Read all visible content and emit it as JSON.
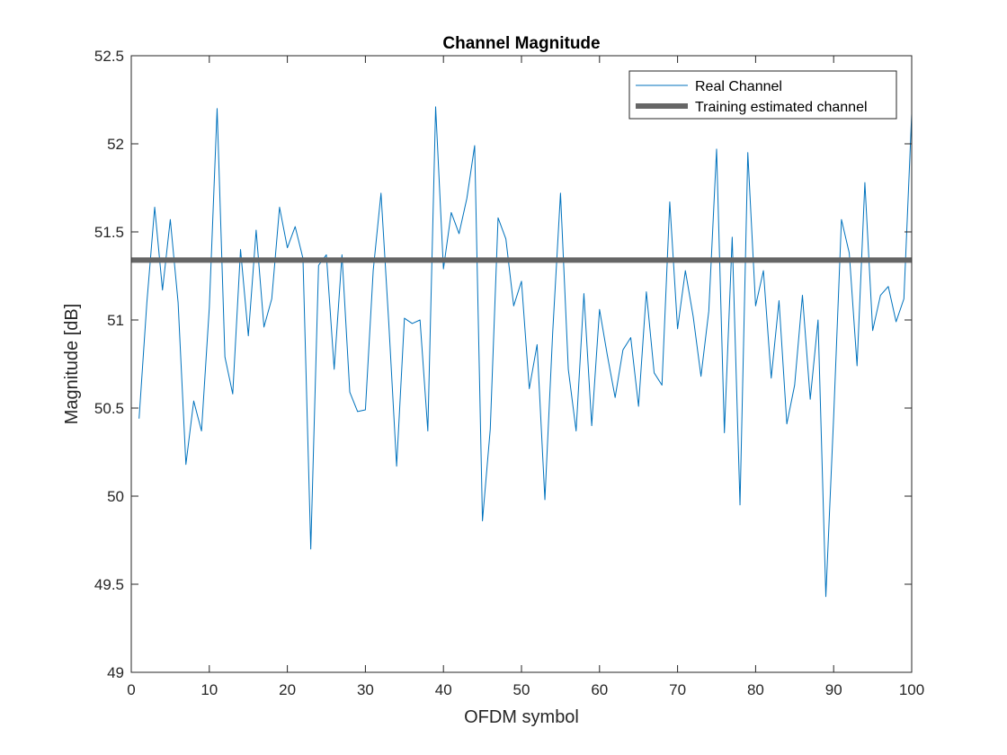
{
  "chart_data": {
    "type": "line",
    "title": "Channel Magnitude",
    "xlabel": "OFDM symbol",
    "ylabel": "Magnitude [dB]",
    "xlim": [
      0,
      100
    ],
    "ylim": [
      49,
      52.5
    ],
    "xticks": [
      0,
      10,
      20,
      30,
      40,
      50,
      60,
      70,
      80,
      90,
      100
    ],
    "yticks": [
      49,
      49.5,
      50,
      50.5,
      51,
      51.5,
      52,
      52.5
    ],
    "xtick_labels": [
      "0",
      "10",
      "20",
      "30",
      "40",
      "50",
      "60",
      "70",
      "80",
      "90",
      "100"
    ],
    "ytick_labels": [
      "49",
      "49.5",
      "50",
      "50.5",
      "51",
      "51.5",
      "52",
      "52.5"
    ],
    "grid": false,
    "legend": "top-right",
    "series": [
      {
        "name": "Real Channel",
        "color": "#0072BD",
        "x": [
          1,
          2,
          3,
          4,
          5,
          6,
          7,
          8,
          9,
          10,
          11,
          12,
          13,
          14,
          15,
          16,
          17,
          18,
          19,
          20,
          21,
          22,
          23,
          24,
          25,
          26,
          27,
          28,
          29,
          30,
          31,
          32,
          33,
          34,
          35,
          36,
          37,
          38,
          39,
          40,
          41,
          42,
          43,
          44,
          45,
          46,
          47,
          48,
          49,
          50,
          51,
          52,
          53,
          54,
          55,
          56,
          57,
          58,
          59,
          60,
          61,
          62,
          63,
          64,
          65,
          66,
          67,
          68,
          69,
          70,
          71,
          72,
          73,
          74,
          75,
          76,
          77,
          78,
          79,
          80,
          81,
          82,
          83,
          84,
          85,
          86,
          87,
          88,
          89,
          90,
          91,
          92,
          93,
          94,
          95,
          96,
          97,
          98,
          99,
          100
        ],
        "y": [
          50.44,
          51.1,
          51.64,
          51.17,
          51.57,
          51.1,
          50.18,
          50.54,
          50.37,
          51.07,
          52.2,
          50.79,
          50.58,
          51.4,
          50.91,
          51.51,
          50.96,
          51.12,
          51.64,
          51.41,
          51.53,
          51.35,
          49.7,
          51.31,
          51.37,
          50.72,
          51.37,
          50.59,
          50.48,
          50.49,
          51.28,
          51.72,
          50.98,
          50.17,
          51.01,
          50.98,
          51.0,
          50.37,
          52.21,
          51.29,
          51.61,
          51.49,
          51.69,
          51.99,
          49.86,
          50.38,
          51.58,
          51.46,
          51.08,
          51.22,
          50.61,
          50.86,
          49.98,
          50.93,
          51.72,
          50.72,
          50.37,
          51.15,
          50.4,
          51.06,
          50.8,
          50.56,
          50.83,
          50.9,
          50.51,
          51.16,
          50.7,
          50.63,
          51.67,
          50.95,
          51.28,
          51.02,
          50.68,
          51.05,
          51.97,
          50.36,
          51.47,
          49.95,
          51.95,
          51.08,
          51.28,
          50.67,
          51.11,
          50.41,
          50.63,
          51.14,
          50.55,
          51.0,
          49.43,
          50.45,
          51.57,
          51.38,
          50.74,
          51.78,
          50.94,
          51.14,
          51.19,
          50.99,
          51.12,
          52.17
        ]
      },
      {
        "name": "Training estimated channel",
        "color": "#666666",
        "x": [
          0,
          100
        ],
        "y": [
          51.34,
          51.34
        ]
      }
    ]
  }
}
